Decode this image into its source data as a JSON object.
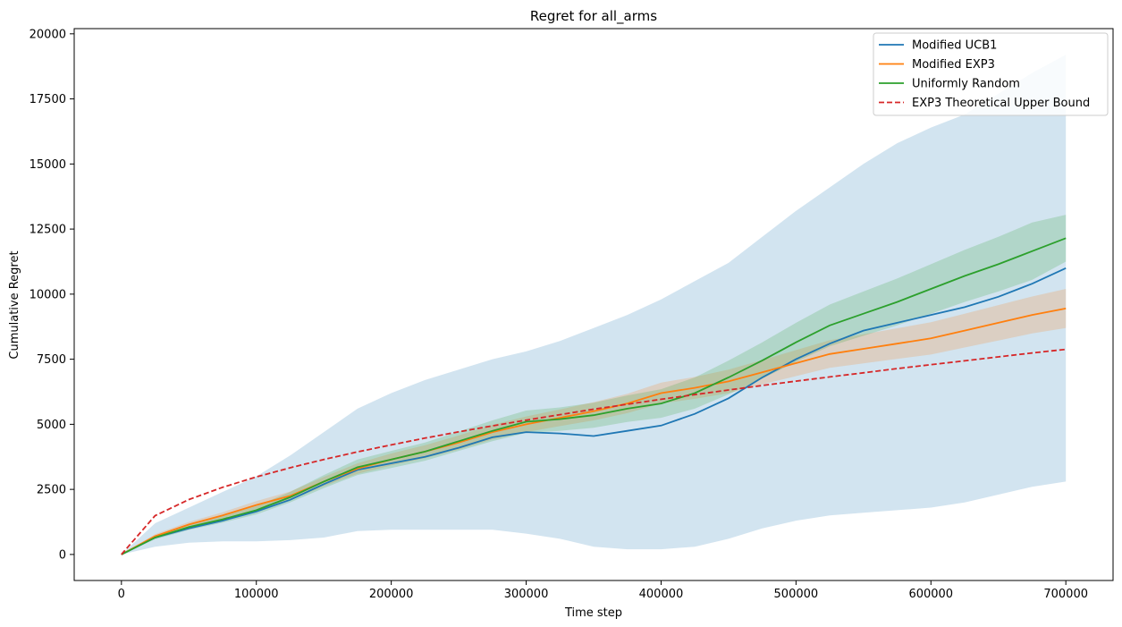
{
  "chart_data": {
    "type": "line",
    "title": "Regret for all_arms",
    "xlabel": "Time step",
    "ylabel": "Cumulative Regret",
    "xlim": [
      -35000,
      735000
    ],
    "ylim": [
      -1000,
      20200
    ],
    "xticks": [
      0,
      100000,
      200000,
      300000,
      400000,
      500000,
      600000,
      700000
    ],
    "xtick_labels": [
      "0",
      "100000",
      "200000",
      "300000",
      "400000",
      "500000",
      "600000",
      "700000"
    ],
    "yticks": [
      0,
      2500,
      5000,
      7500,
      10000,
      12500,
      15000,
      17500,
      20000
    ],
    "ytick_labels": [
      "0",
      "2500",
      "5000",
      "7500",
      "10000",
      "12500",
      "15000",
      "17500",
      "20000"
    ],
    "grid": false,
    "legend_position": "upper right",
    "x": [
      0,
      25000,
      50000,
      75000,
      100000,
      125000,
      150000,
      175000,
      200000,
      225000,
      250000,
      275000,
      300000,
      325000,
      350000,
      375000,
      400000,
      425000,
      450000,
      475000,
      500000,
      525000,
      550000,
      575000,
      600000,
      625000,
      650000,
      675000,
      700000
    ],
    "series": [
      {
        "name": "Modified UCB1",
        "color": "#1f77b4",
        "style": "solid",
        "values": [
          0,
          650,
          1000,
          1300,
          1650,
          2100,
          2700,
          3250,
          3500,
          3750,
          4100,
          4500,
          4700,
          4650,
          4550,
          4750,
          4950,
          5400,
          6000,
          6800,
          7500,
          8100,
          8600,
          8900,
          9200,
          9500,
          9900,
          10400,
          11000
        ],
        "band_upper": [
          0,
          1200,
          1800,
          2400,
          3000,
          3800,
          4700,
          5600,
          6200,
          6700,
          7100,
          7500,
          7800,
          8200,
          8700,
          9200,
          9800,
          10500,
          11200,
          12200,
          13200,
          14100,
          15000,
          15800,
          16400,
          16900,
          17700,
          18500,
          19200
        ],
        "band_lower": [
          0,
          300,
          450,
          500,
          500,
          550,
          650,
          900,
          950,
          950,
          950,
          950,
          800,
          600,
          300,
          200,
          200,
          300,
          600,
          1000,
          1300,
          1500,
          1600,
          1700,
          1800,
          2000,
          2300,
          2600,
          2800
        ]
      },
      {
        "name": "Modified EXP3",
        "color": "#ff7f0e",
        "style": "solid",
        "values": [
          0,
          700,
          1150,
          1500,
          1900,
          2250,
          2800,
          3300,
          3650,
          3950,
          4300,
          4700,
          5000,
          5250,
          5500,
          5800,
          6200,
          6400,
          6650,
          7000,
          7350,
          7700,
          7900,
          8100,
          8300,
          8600,
          8900,
          9200,
          9450
        ],
        "band_upper": [
          0,
          780,
          1250,
          1620,
          2050,
          2420,
          2980,
          3500,
          3880,
          4200,
          4570,
          4980,
          5300,
          5570,
          5850,
          6170,
          6600,
          6820,
          7100,
          7470,
          7850,
          8230,
          8460,
          8690,
          8920,
          9250,
          9580,
          9910,
          10200
        ],
        "band_lower": [
          0,
          620,
          1050,
          1380,
          1750,
          2080,
          2620,
          3100,
          3420,
          3700,
          4030,
          4420,
          4700,
          4930,
          5150,
          5430,
          5800,
          5980,
          6200,
          6530,
          6850,
          7170,
          7340,
          7510,
          7680,
          7950,
          8220,
          8490,
          8700
        ]
      },
      {
        "name": "Uniformly Random",
        "color": "#2ca02c",
        "style": "solid",
        "values": [
          0,
          650,
          1050,
          1350,
          1700,
          2200,
          2800,
          3350,
          3650,
          3950,
          4350,
          4750,
          5100,
          5200,
          5350,
          5600,
          5800,
          6200,
          6800,
          7450,
          8150,
          8800,
          9250,
          9700,
          10200,
          10700,
          11150,
          11650,
          12150
        ],
        "band_upper": [
          0,
          720,
          1160,
          1480,
          1860,
          2400,
          3050,
          3650,
          3980,
          4300,
          4720,
          5150,
          5530,
          5650,
          5830,
          6110,
          6350,
          6800,
          7450,
          8150,
          8900,
          9600,
          10100,
          10600,
          11150,
          11700,
          12200,
          12750,
          13050
        ],
        "band_lower": [
          0,
          580,
          940,
          1220,
          1540,
          2000,
          2550,
          3050,
          3320,
          3600,
          3980,
          4350,
          4670,
          4750,
          4870,
          5090,
          5250,
          5600,
          6150,
          6750,
          7400,
          8000,
          8400,
          8800,
          9250,
          9700,
          10100,
          10550,
          11250
        ]
      },
      {
        "name": "EXP3 Theoretical Upper Bound",
        "color": "#d62728",
        "style": "dashed",
        "values": [
          0,
          1490,
          2110,
          2580,
          2980,
          3330,
          3650,
          3940,
          4210,
          4470,
          4710,
          4940,
          5160,
          5370,
          5580,
          5770,
          5960,
          6140,
          6320,
          6490,
          6660,
          6820,
          6980,
          7140,
          7290,
          7440,
          7590,
          7740,
          7880
        ]
      }
    ]
  }
}
